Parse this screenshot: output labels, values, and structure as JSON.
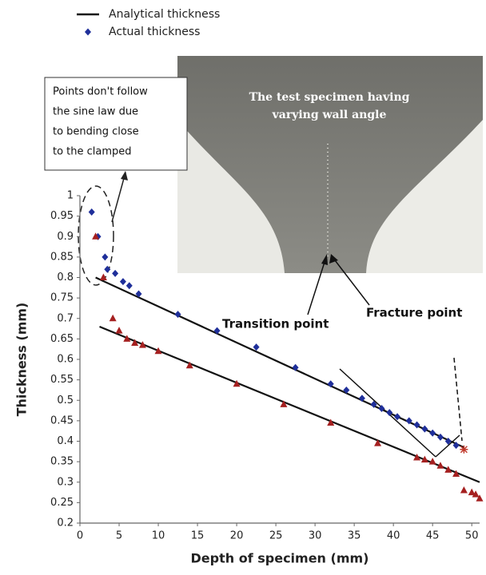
{
  "chart_data": {
    "type": "scatter",
    "xlabel": "Depth of specimen (mm)",
    "ylabel": "Thickness (mm)",
    "xlim": [
      0,
      51
    ],
    "ylim": [
      0.2,
      1
    ],
    "xticks": [
      0,
      5,
      10,
      15,
      20,
      25,
      30,
      35,
      40,
      45,
      50
    ],
    "yticks": [
      0.2,
      0.25,
      0.3,
      0.35,
      0.4,
      0.45,
      0.5,
      0.55,
      0.6,
      0.65,
      0.7,
      0.75,
      0.8,
      0.85,
      0.9,
      0.95,
      1
    ],
    "series": [
      {
        "name": "Analytical thickness",
        "style": "line",
        "color": "#111111",
        "x": [
          2,
          49
        ],
        "values": [
          0.8,
          0.385
        ]
      },
      {
        "style": "line",
        "color": "#111111",
        "x": [
          2.5,
          51
        ],
        "values": [
          0.68,
          0.3
        ]
      },
      {
        "name": "Actual thickness",
        "style": "diamond",
        "color": "#1f2f9a",
        "x": [
          1.5,
          2.3,
          3.2,
          3.5,
          4.5,
          5.5,
          6.3,
          7.5,
          12.5,
          17.5,
          22.5,
          27.5,
          32,
          34,
          36,
          37.5,
          38.5,
          39.5,
          40.5,
          42,
          43,
          44,
          45,
          46,
          47,
          48
        ],
        "values": [
          0.96,
          0.9,
          0.85,
          0.82,
          0.81,
          0.79,
          0.78,
          0.76,
          0.71,
          0.67,
          0.63,
          0.58,
          0.54,
          0.525,
          0.505,
          0.49,
          0.48,
          0.47,
          0.46,
          0.45,
          0.44,
          0.43,
          0.42,
          0.41,
          0.4,
          0.39
        ]
      },
      {
        "style": "triangle",
        "color": "#a52020",
        "x": [
          2,
          3,
          4.2,
          5,
          6,
          7,
          8,
          10,
          14,
          20,
          26,
          32,
          38,
          43,
          44,
          45,
          46,
          47,
          48,
          49,
          50,
          50.5,
          51
        ],
        "values": [
          0.9,
          0.8,
          0.7,
          0.67,
          0.65,
          0.64,
          0.635,
          0.62,
          0.585,
          0.54,
          0.49,
          0.445,
          0.395,
          0.36,
          0.355,
          0.35,
          0.34,
          0.33,
          0.32,
          0.28,
          0.275,
          0.27,
          0.26
        ]
      },
      {
        "style": "star",
        "color": "#c0392b",
        "x": [
          49
        ],
        "values": [
          0.38
        ]
      }
    ],
    "legend": "top-left",
    "note": [
      "Points don't follow",
      "the sine law due",
      "to bending close",
      "to the clamped"
    ],
    "labels": [
      "Transition point",
      "Fracture point"
    ],
    "photo_caption": [
      "The test specimen having",
      "varying wall angle"
    ]
  }
}
